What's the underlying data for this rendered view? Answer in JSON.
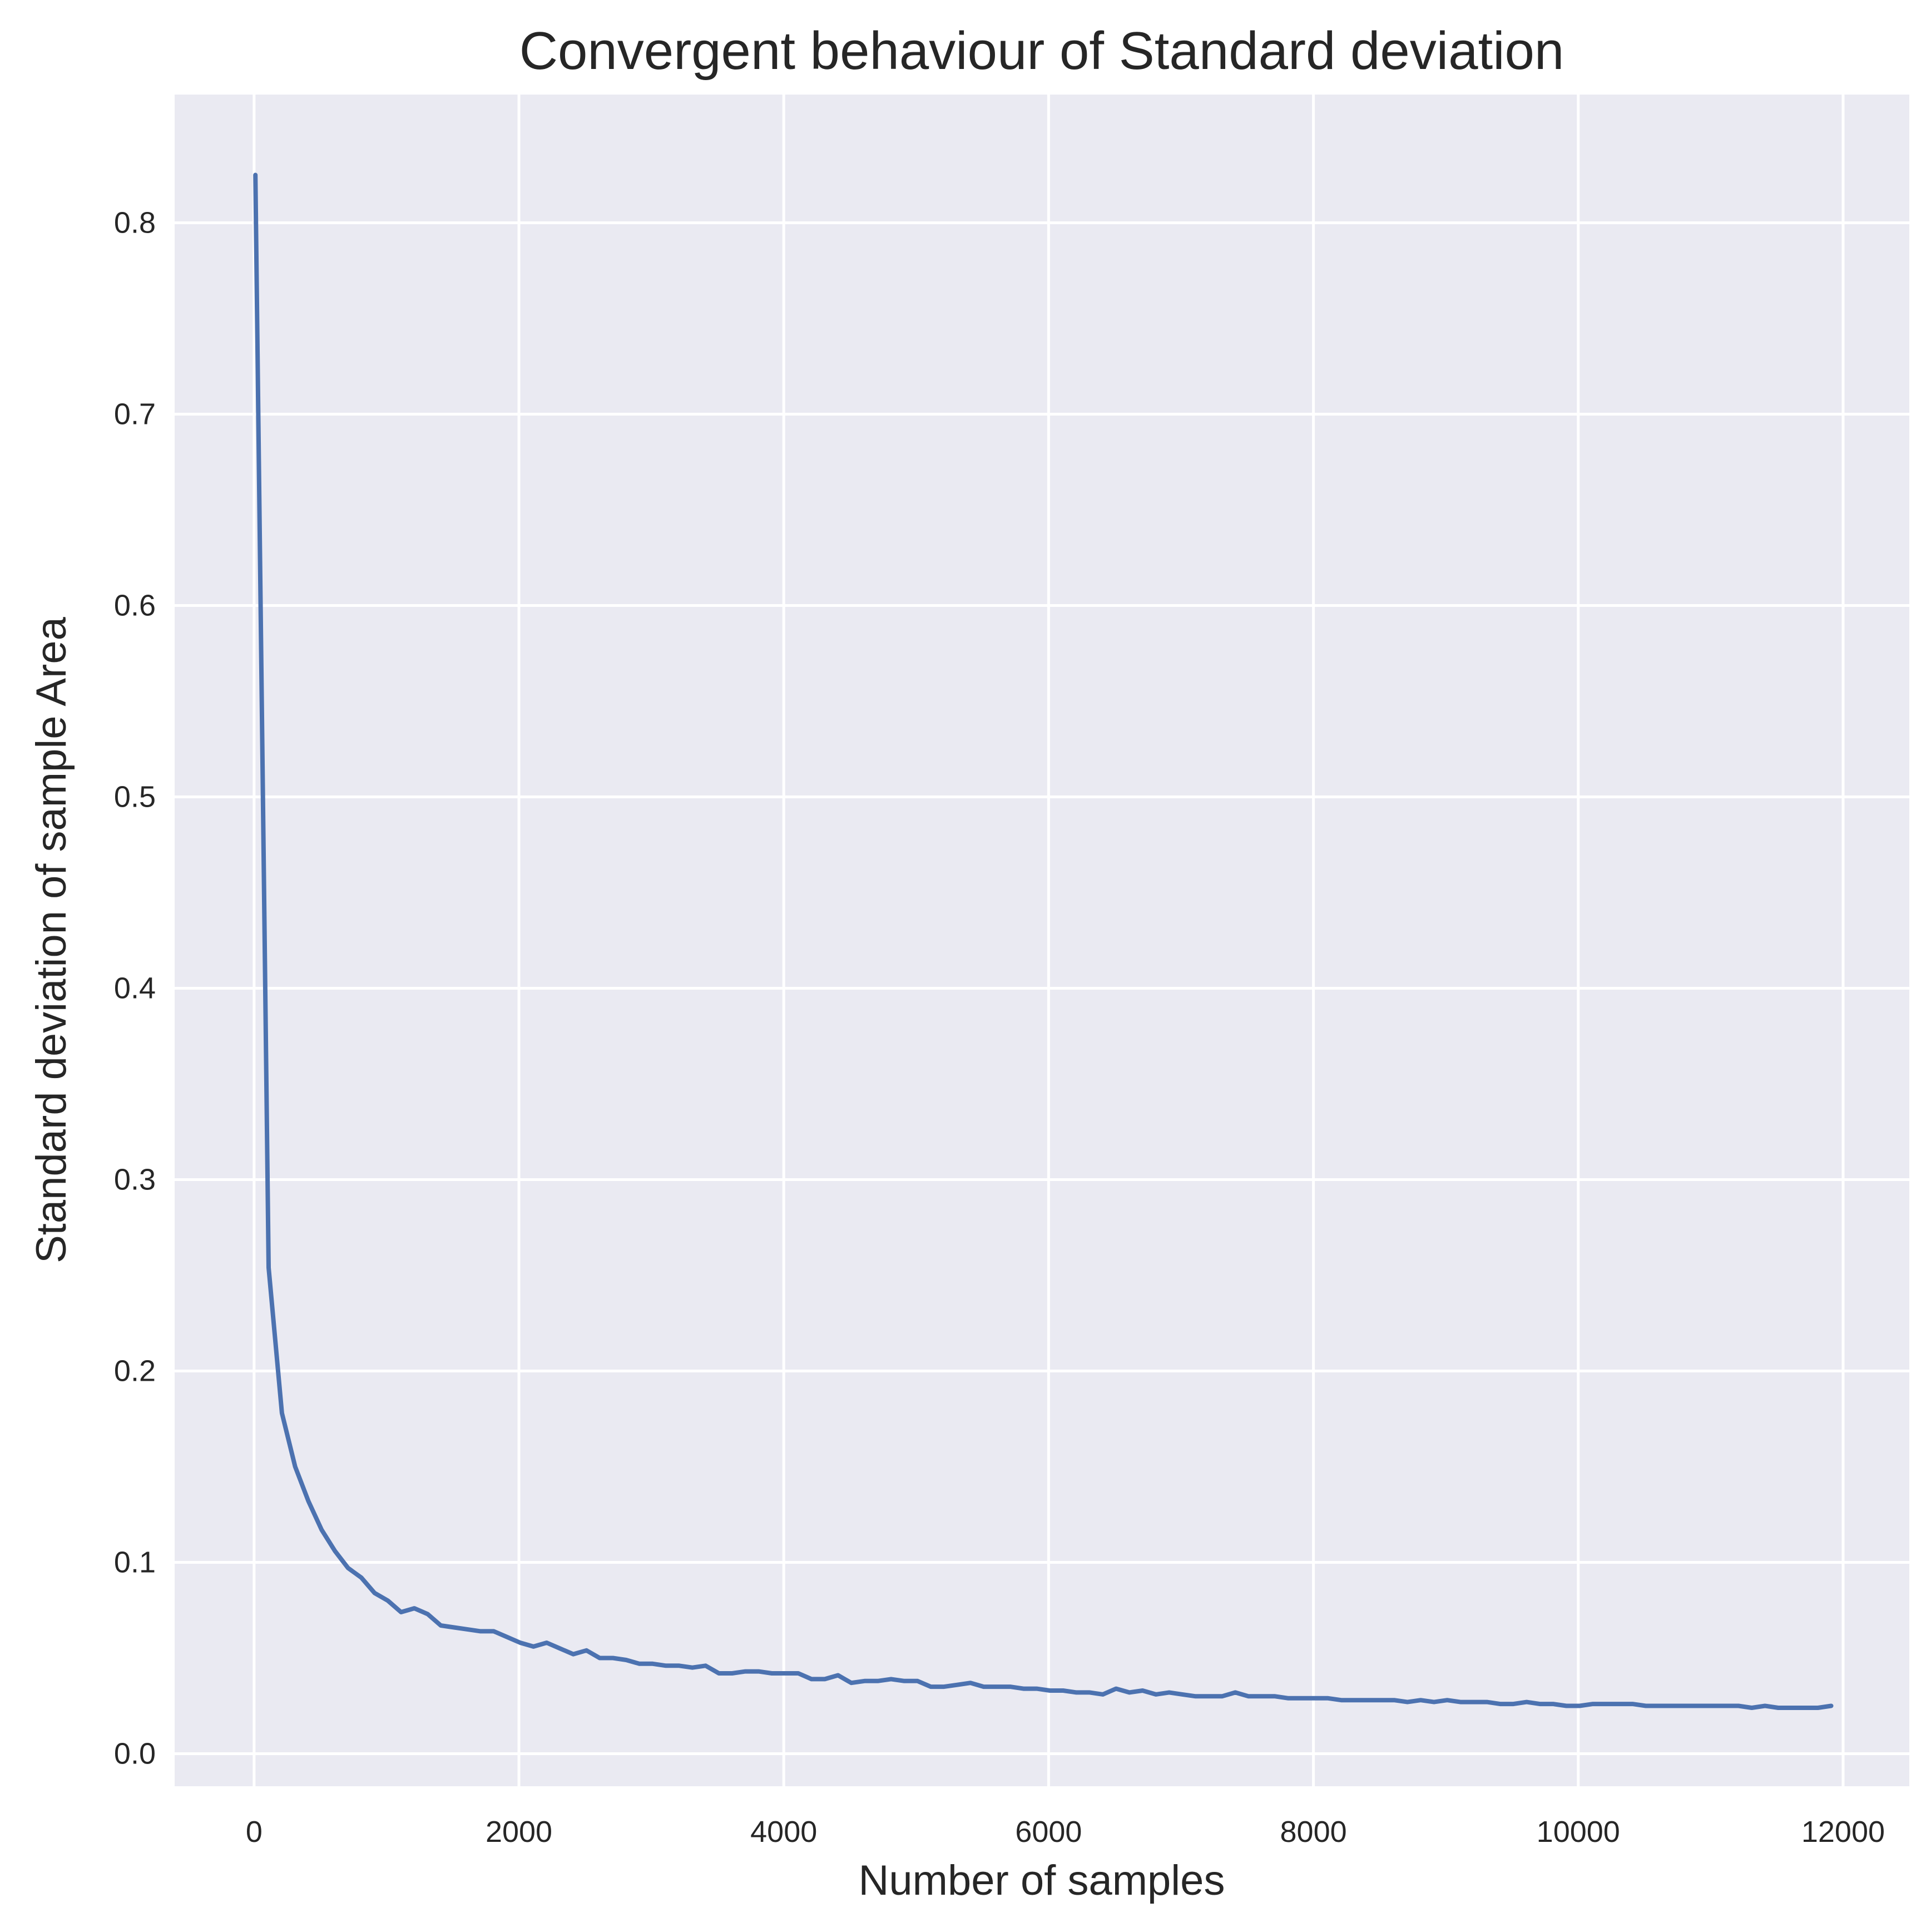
{
  "chart_data": {
    "type": "line",
    "title": "Convergent behaviour of Standard deviation",
    "xlabel": "Number of samples",
    "ylabel": "Standard deviation of sample Area",
    "xlim": [
      -600,
      12500
    ],
    "ylim": [
      -0.017,
      0.867
    ],
    "xticks": [
      0,
      2000,
      4000,
      6000,
      8000,
      10000,
      12000
    ],
    "yticks": [
      0.0,
      0.1,
      0.2,
      0.3,
      0.4,
      0.5,
      0.6,
      0.7,
      0.8
    ],
    "xtick_labels": [
      "0",
      "2000",
      "4000",
      "6000",
      "8000",
      "10000",
      "12000"
    ],
    "ytick_labels": [
      "0.0",
      "0.1",
      "0.2",
      "0.3",
      "0.4",
      "0.5",
      "0.6",
      "0.7",
      "0.8"
    ],
    "grid": true,
    "colors": {
      "background": "#eaeaf2",
      "grid": "#ffffff",
      "line": "#4c72b0",
      "text": "#262626"
    },
    "series": [
      {
        "x": [
          10,
          110,
          210,
          310,
          410,
          510,
          610,
          710,
          810,
          910,
          1010,
          1110,
          1210,
          1310,
          1410,
          1510,
          1610,
          1710,
          1810,
          1910,
          2010,
          2110,
          2210,
          2310,
          2410,
          2510,
          2610,
          2710,
          2810,
          2910,
          3010,
          3110,
          3210,
          3310,
          3410,
          3510,
          3610,
          3710,
          3810,
          3910,
          4010,
          4110,
          4210,
          4310,
          4410,
          4510,
          4610,
          4710,
          4810,
          4910,
          5010,
          5110,
          5210,
          5310,
          5410,
          5510,
          5610,
          5710,
          5810,
          5910,
          6010,
          6110,
          6210,
          6310,
          6410,
          6510,
          6610,
          6710,
          6810,
          6910,
          7010,
          7110,
          7210,
          7310,
          7410,
          7510,
          7610,
          7710,
          7810,
          7910,
          8010,
          8110,
          8210,
          8310,
          8410,
          8510,
          8610,
          8710,
          8810,
          8910,
          9010,
          9110,
          9210,
          9310,
          9410,
          9510,
          9610,
          9710,
          9810,
          9910,
          10010,
          10110,
          10210,
          10310,
          10410,
          10510,
          10610,
          10710,
          10810,
          10910,
          11010,
          11110,
          11210,
          11310,
          11410,
          11510,
          11610,
          11710,
          11810,
          11910
        ],
        "values": [
          0.825,
          0.254,
          0.178,
          0.15,
          0.132,
          0.117,
          0.106,
          0.097,
          0.092,
          0.084,
          0.08,
          0.074,
          0.076,
          0.073,
          0.067,
          0.066,
          0.065,
          0.064,
          0.064,
          0.061,
          0.058,
          0.056,
          0.058,
          0.055,
          0.052,
          0.054,
          0.05,
          0.05,
          0.049,
          0.047,
          0.047,
          0.046,
          0.046,
          0.045,
          0.046,
          0.042,
          0.042,
          0.043,
          0.043,
          0.042,
          0.042,
          0.042,
          0.039,
          0.039,
          0.041,
          0.037,
          0.038,
          0.038,
          0.039,
          0.038,
          0.038,
          0.035,
          0.035,
          0.036,
          0.037,
          0.035,
          0.035,
          0.035,
          0.034,
          0.034,
          0.033,
          0.033,
          0.032,
          0.032,
          0.031,
          0.034,
          0.032,
          0.033,
          0.031,
          0.032,
          0.031,
          0.03,
          0.03,
          0.03,
          0.032,
          0.03,
          0.03,
          0.03,
          0.029,
          0.029,
          0.029,
          0.029,
          0.028,
          0.028,
          0.028,
          0.028,
          0.028,
          0.027,
          0.028,
          0.027,
          0.028,
          0.027,
          0.027,
          0.027,
          0.026,
          0.026,
          0.027,
          0.026,
          0.026,
          0.025,
          0.025,
          0.026,
          0.026,
          0.026,
          0.026,
          0.025,
          0.025,
          0.025,
          0.025,
          0.025,
          0.025,
          0.025,
          0.025,
          0.024,
          0.025,
          0.024,
          0.024,
          0.024,
          0.024,
          0.025
        ]
      }
    ]
  }
}
